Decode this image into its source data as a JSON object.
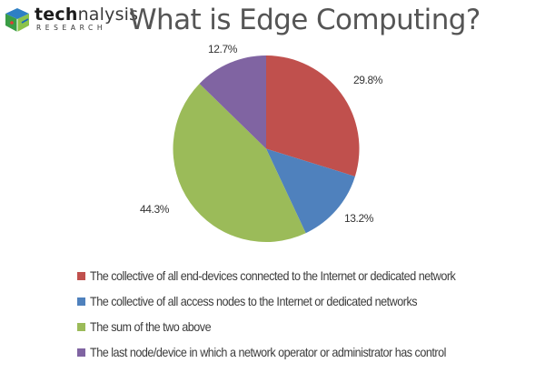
{
  "brand": {
    "logo_part1": "tech",
    "logo_part2": "nalysis",
    "logo_sub": "RESEARCH",
    "logo_icon": "cube-icon"
  },
  "chart_data": {
    "type": "pie",
    "title": "What is Edge Computing?",
    "start_angle": "12 o'clock, clockwise",
    "categories": [
      "The collective of all end-devices connected to the Internet or dedicated network",
      "The collective of all access nodes to the Internet or dedicated networks",
      "The sum of the two above",
      "The last node/device in which a network operator or administrator has control"
    ],
    "values": [
      29.8,
      13.2,
      44.3,
      12.7
    ],
    "labels": [
      "29.8%",
      "13.2%",
      "44.3%",
      "12.7%"
    ],
    "colors": [
      "#c0504d",
      "#4f81bd",
      "#9bbb59",
      "#8064a2"
    ],
    "legend_position": "bottom"
  }
}
